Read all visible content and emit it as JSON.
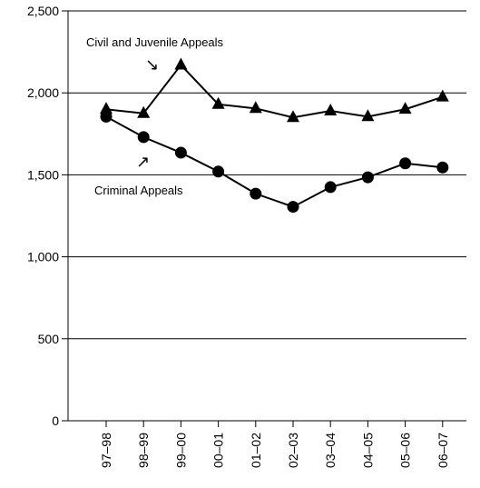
{
  "chart_data": {
    "type": "line",
    "categories": [
      "97–98",
      "98–99",
      "99–00",
      "00–01",
      "01–02",
      "02–03",
      "03–04",
      "04–05",
      "05–06",
      "06–07"
    ],
    "ylim": [
      0,
      2500
    ],
    "yticks": [
      0,
      500,
      1000,
      1500,
      2000,
      2500
    ],
    "ytick_labels": [
      "0",
      "500",
      "1,000",
      "1,500",
      "2,000",
      "2,500"
    ],
    "grid": "horizontal",
    "series": [
      {
        "name": "Civil and Juvenile Appeals",
        "marker": "triangle",
        "values": [
          1900,
          1875,
          2170,
          1930,
          1905,
          1850,
          1890,
          1855,
          1900,
          1975
        ]
      },
      {
        "name": "Criminal Appeals",
        "marker": "circle",
        "values": [
          1855,
          1730,
          1635,
          1520,
          1385,
          1305,
          1425,
          1485,
          1570,
          1545
        ]
      }
    ],
    "annotations": [
      {
        "text": "Civil and Juvenile Appeals",
        "arrow": "↘"
      },
      {
        "text": "Criminal Appeals",
        "arrow": "↗"
      }
    ],
    "colors": {
      "line": "#000000",
      "grid": "#000000"
    }
  }
}
